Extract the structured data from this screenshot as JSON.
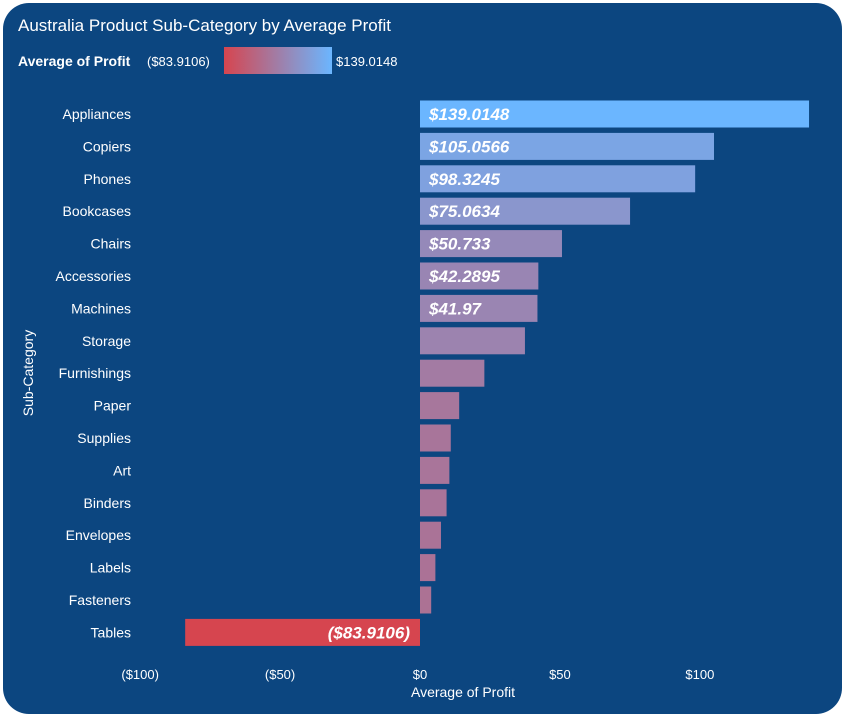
{
  "title": "Australia Product Sub-Category by Average Profit",
  "legend": {
    "title": "Average of Profit",
    "min_label": "($83.9106)",
    "max_label": "$139.0148",
    "min_color": "#d6454f",
    "max_color": "#6bb6ff"
  },
  "colors": {
    "background": "#0c4680",
    "text": "#ffffff"
  },
  "chart_data": {
    "type": "bar",
    "orientation": "horizontal",
    "xlabel": "Average of Profit",
    "ylabel": "Sub-Category",
    "xlim": [
      -100,
      140
    ],
    "xticks": [
      -100,
      -50,
      0,
      50,
      100
    ],
    "xtick_labels": [
      "($100)",
      "($50)",
      "$0",
      "$50",
      "$100"
    ],
    "grid": false,
    "categories": [
      "Appliances",
      "Copiers",
      "Phones",
      "Bookcases",
      "Chairs",
      "Accessories",
      "Machines",
      "Storage",
      "Furnishings",
      "Paper",
      "Supplies",
      "Art",
      "Binders",
      "Envelopes",
      "Labels",
      "Fasteners",
      "Tables"
    ],
    "values": [
      139.0148,
      105.0566,
      98.3245,
      75.0634,
      50.733,
      42.2895,
      41.97,
      37.5,
      23,
      14,
      11,
      10.5,
      9.5,
      7.5,
      5.5,
      4,
      -83.9106
    ],
    "data_labels": [
      "$139.0148",
      "$105.0566",
      "$98.3245",
      "$75.0634",
      "$50.733",
      "$42.2895",
      "$41.97",
      "",
      "",
      "",
      "",
      "",
      "",
      "",
      "",
      "",
      "($83.9106)"
    ]
  }
}
